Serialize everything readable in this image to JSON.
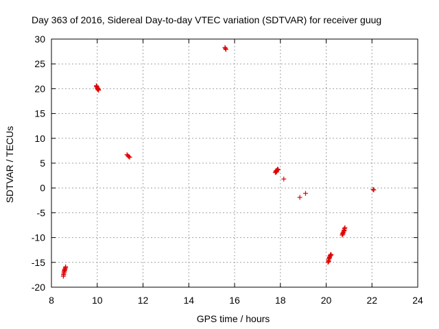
{
  "chart_data": {
    "type": "scatter",
    "title": "Day 363 of 2016, Sidereal Day-to-day VTEC variation (SDTVAR) for receiver guug",
    "xlabel": "GPS time / hours",
    "ylabel": "SDTVAR / TECUs",
    "xlim": [
      8,
      24
    ],
    "ylim": [
      -20,
      30
    ],
    "xticks": [
      "8",
      "10",
      "12",
      "14",
      "16",
      "18",
      "20",
      "22",
      "24"
    ],
    "yticks": [
      "30",
      "25",
      "20",
      "15",
      "10",
      "5",
      "0",
      "-5",
      "-10",
      "-15",
      "-20"
    ],
    "grid": true,
    "marker": "+",
    "color": "#e00000",
    "series": [
      {
        "name": "SDTVAR",
        "points": [
          [
            8.52,
            -17.8
          ],
          [
            8.54,
            -17.3
          ],
          [
            8.55,
            -17.0
          ],
          [
            8.56,
            -16.8
          ],
          [
            8.58,
            -16.5
          ],
          [
            8.59,
            -16.3
          ],
          [
            8.61,
            -16.1
          ],
          [
            8.62,
            -15.9
          ],
          [
            8.53,
            -17.5
          ],
          [
            8.57,
            -16.6
          ],
          [
            9.96,
            20.6
          ],
          [
            9.98,
            20.4
          ],
          [
            10.0,
            20.2
          ],
          [
            10.02,
            20.0
          ],
          [
            10.04,
            19.9
          ],
          [
            10.06,
            19.7
          ],
          [
            9.97,
            20.5
          ],
          [
            10.01,
            20.1
          ],
          [
            10.03,
            19.8
          ],
          [
            10.05,
            19.9
          ],
          [
            11.3,
            6.7
          ],
          [
            11.34,
            6.5
          ],
          [
            11.38,
            6.3
          ],
          [
            11.42,
            6.2
          ],
          [
            15.58,
            28.3
          ],
          [
            15.6,
            28.1
          ],
          [
            15.62,
            27.9
          ],
          [
            17.78,
            3.1
          ],
          [
            17.8,
            3.3
          ],
          [
            17.82,
            3.5
          ],
          [
            17.84,
            3.4
          ],
          [
            17.86,
            3.6
          ],
          [
            17.88,
            3.8
          ],
          [
            17.9,
            3.7
          ],
          [
            17.83,
            3.2
          ],
          [
            18.15,
            1.8
          ],
          [
            18.85,
            -1.9
          ],
          [
            19.1,
            -1.1
          ],
          [
            20.08,
            -15.0
          ],
          [
            20.1,
            -14.6
          ],
          [
            20.12,
            -14.3
          ],
          [
            20.14,
            -14.0
          ],
          [
            20.16,
            -13.8
          ],
          [
            20.18,
            -13.6
          ],
          [
            20.2,
            -13.4
          ],
          [
            20.22,
            -13.5
          ],
          [
            20.11,
            -14.8
          ],
          [
            20.15,
            -14.1
          ],
          [
            20.7,
            -9.5
          ],
          [
            20.72,
            -9.2
          ],
          [
            20.74,
            -9.0
          ],
          [
            20.76,
            -8.8
          ],
          [
            20.78,
            -8.5
          ],
          [
            20.8,
            -8.2
          ],
          [
            20.82,
            -8.0
          ],
          [
            20.73,
            -9.3
          ],
          [
            20.79,
            -8.6
          ],
          [
            22.05,
            -0.3
          ],
          [
            22.08,
            -0.4
          ]
        ]
      }
    ]
  }
}
